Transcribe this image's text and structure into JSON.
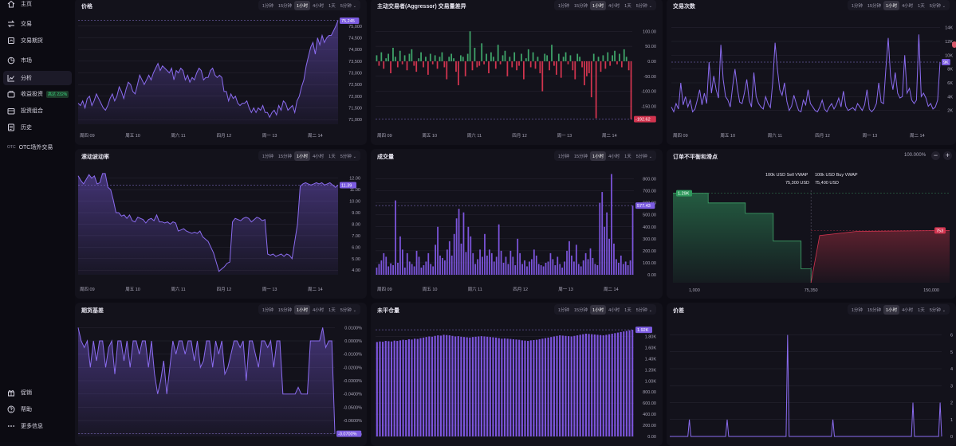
{
  "sidebar": {
    "items": [
      {
        "label": "主页",
        "icon": "home-icon",
        "badge": "",
        "tag": ""
      },
      {
        "label": "交易",
        "icon": "trade-icon",
        "badge": "",
        "tag": ""
      },
      {
        "label": "交易期货",
        "icon": "futures-icon",
        "badge": "",
        "tag": ""
      },
      {
        "label": "市场",
        "icon": "market-icon",
        "badge": "",
        "tag": ""
      },
      {
        "label": "分析",
        "icon": "analytics-icon",
        "badge": "",
        "tag": ""
      },
      {
        "label": "收益投资",
        "icon": "earn-icon",
        "badge": "高达 232%",
        "tag": ""
      },
      {
        "label": "投资组合",
        "icon": "portfolio-icon",
        "badge": "",
        "tag": ""
      },
      {
        "label": "历史",
        "icon": "history-icon",
        "badge": "",
        "tag": ""
      },
      {
        "label": "OTC场外交易",
        "icon": "otc-icon",
        "badge": "",
        "tag": "OTC"
      }
    ],
    "bottom_items": [
      {
        "label": "促销",
        "icon": "gift-icon"
      },
      {
        "label": "帮助",
        "icon": "help-icon"
      },
      {
        "label": "更多信息",
        "icon": "more-icon"
      }
    ]
  },
  "timeframes": [
    "1分钟",
    "15分钟",
    "1小时",
    "4小时",
    "1天",
    "5分钟"
  ],
  "x_ticks": [
    "周四 09",
    "周五 10",
    "周六 11",
    "四月 12",
    "周一 13",
    "周二 14"
  ],
  "colors": {
    "accent": "#8b5cf6",
    "up": "#3fa56a",
    "down": "#d2344f",
    "tag": "#7c5ce0"
  },
  "panels": {
    "price": {
      "title": "价格",
      "active": "1小时"
    },
    "aggressor": {
      "title": "主动交易者(Aggressor) 交易量差异",
      "active": "1小时"
    },
    "trades": {
      "title": "交易次数",
      "active": "1小时"
    },
    "volatility": {
      "title": "滚动波动率",
      "active": "1小时"
    },
    "volume": {
      "title": "成交量",
      "active": "1小时"
    },
    "orderbook": {
      "title": "订单不平衡和滑点",
      "zoom": "100.000%",
      "minus": "−",
      "plus": "+",
      "sell_vwap_label": "100k USD Sell VWAP",
      "sell_vwap_value": "75,300  USD",
      "buy_vwap_label": "100k USD Buy VWAP",
      "buy_vwap_value": "75,400 USD",
      "bid_tag": "1.29K",
      "ask_tag": "753",
      "x_ticks": [
        "1,000",
        "75,350",
        "150,000"
      ]
    },
    "basis": {
      "title": "期货基差",
      "active": "1小时"
    },
    "oi": {
      "title": "未平仓量",
      "active": "1小时"
    },
    "spread": {
      "title": "价差",
      "active": "1小时"
    }
  },
  "chart_data": [
    {
      "id": "price",
      "type": "area",
      "title": "价格",
      "yticks": [
        "75,000",
        "74,500",
        "74,000",
        "73,500",
        "73,000",
        "72,500",
        "72,000",
        "71,500",
        "71,000"
      ],
      "ylim": [
        70800,
        75300
      ],
      "last_label": "75,245",
      "values": [
        71700,
        71600,
        71800,
        71500,
        71900,
        72000,
        71600,
        71800,
        72100,
        71900,
        71700,
        71500,
        71400,
        71600,
        71900,
        72100,
        71800,
        72000,
        72400,
        72200,
        71900,
        72300,
        72600,
        72500,
        72200,
        72100,
        72500,
        72900,
        72700,
        72500,
        72700,
        72900,
        72700,
        73000,
        73200,
        73400,
        73100,
        73300,
        73200,
        73100,
        73000,
        73200,
        72700,
        73100,
        73000,
        73200,
        73100,
        72700,
        72900,
        72600,
        72800,
        72700,
        73000,
        73200,
        73100,
        72700,
        72800,
        72800,
        73100,
        73200,
        72900,
        72800,
        72900,
        72800,
        72200,
        72200,
        71800,
        72100,
        71900,
        72000,
        71700,
        71600,
        71700,
        71700,
        71800,
        71500,
        71300,
        71500,
        71300,
        71500,
        71400,
        71600,
        71300,
        71300,
        71100,
        71300,
        71400,
        71200,
        71600,
        71400,
        71800,
        71700,
        71400,
        71500,
        71600,
        71300,
        71800,
        72000,
        72400,
        72700,
        73300,
        73700,
        74100,
        74300,
        73800,
        74500,
        74200,
        74600,
        74300,
        74500,
        74600,
        74600,
        74800,
        75000,
        75245
      ]
    },
    {
      "id": "aggressor",
      "type": "bar",
      "title": "主动交易者(Aggressor) 交易量差异",
      "yticks": [
        "100.00",
        "50.00",
        "0.00",
        "-50.00",
        "-100.00",
        "-150.00"
      ],
      "ylim": [
        -210,
        130
      ],
      "last_label": "-192.62",
      "values": [
        20,
        -15,
        30,
        -25,
        10,
        25,
        -40,
        45,
        15,
        -20,
        35,
        -10,
        20,
        -30,
        25,
        40,
        -15,
        -35,
        10,
        30,
        -20,
        15,
        -45,
        25,
        -10,
        20,
        -25,
        15,
        30,
        -20,
        -60,
        15,
        25,
        10,
        -35,
        -80,
        20,
        15,
        -50,
        25,
        100,
        -30,
        45,
        -20,
        -15,
        60,
        -10,
        25,
        -40,
        30,
        15,
        -25,
        55,
        -10,
        20,
        35,
        -50,
        15,
        -20,
        30,
        -30,
        -15,
        25,
        -60,
        10,
        40,
        -20,
        30,
        -25,
        15,
        -40,
        -100,
        25,
        20,
        -30,
        55,
        -15,
        -45,
        25,
        -55,
        15,
        30,
        -10,
        20,
        -30,
        -60,
        25,
        15,
        -20,
        -80,
        -50,
        -40,
        -120,
        25,
        -190,
        15,
        -35,
        20,
        -25,
        30,
        -15,
        20,
        35,
        -10,
        25,
        -20,
        40,
        15,
        -30,
        -193
      ]
    },
    {
      "id": "trades",
      "type": "line",
      "title": "交易次数",
      "yticks": [
        "14K",
        "12K",
        "10K",
        "8K",
        "6K",
        "4K",
        "2K"
      ],
      "ylim": [
        0,
        15000
      ],
      "last_label": "9K",
      "values": [
        2500,
        1800,
        3000,
        2200,
        6000,
        2800,
        4000,
        2500,
        3500,
        1800,
        2200,
        3500,
        5000,
        2800,
        4500,
        3000,
        9000,
        4500,
        7000,
        5000,
        3800,
        11500,
        6500,
        4000,
        3500,
        2500,
        5500,
        8000,
        5200,
        3200,
        3000,
        4500,
        6500,
        3500,
        2500,
        7500,
        4000,
        3000,
        2500,
        2200,
        4000,
        3000,
        2400,
        6000,
        11800,
        8000,
        5000,
        4200,
        6000,
        3300,
        2000,
        2600,
        4200,
        3000,
        2000,
        1800,
        3500,
        2800,
        5000,
        3000,
        2500,
        2000,
        1800,
        2500,
        3500,
        2200,
        1800,
        2500,
        3000,
        2200,
        2800,
        3800,
        2500,
        4800,
        2600,
        2000,
        2200,
        2400,
        2000,
        3000,
        2500,
        2000,
        2800,
        5000,
        2200,
        1800,
        2200,
        3000,
        6000,
        3200,
        3000,
        8000,
        12500,
        7000,
        5000,
        7500,
        4500,
        3800,
        4000,
        10000,
        4500,
        5200,
        3500,
        3000,
        3500,
        13000,
        4000,
        4500,
        3800,
        2600,
        3000,
        2200,
        2500,
        3500,
        9000
      ]
    },
    {
      "id": "volatility",
      "type": "line",
      "title": "滚动波动率",
      "yticks": [
        "12.00",
        "11.00",
        "10.00",
        "9.00",
        "8.00",
        "7.00",
        "6.00",
        "5.00",
        "4.00"
      ],
      "ylim": [
        3.6,
        12.6
      ],
      "last_label": "11.39",
      "values": [
        12.2,
        11.8,
        11.5,
        11.9,
        12.3,
        12.0,
        12.2,
        11.5,
        11.6,
        12.4,
        12.4,
        11.2,
        11.0,
        10.1,
        9.0,
        9.0,
        8.7,
        8.8,
        8.5,
        8.8,
        8.3,
        8.2,
        8.6,
        8.5,
        8.4,
        8.1,
        8.4,
        8.5,
        8.3,
        8.8,
        8.2,
        8.2,
        8.1,
        8.2,
        8.0,
        8.2,
        8.1,
        7.4,
        7.5,
        7.6,
        7.4,
        7.3,
        7.2,
        7.3,
        7.2,
        7.4,
        6.9,
        6.7,
        6.5,
        6.0,
        5.5,
        4.7,
        3.9,
        4.1,
        4.3,
        4.6,
        4.7,
        8.2,
        8.5,
        8.4,
        8.3,
        8.5,
        8.6,
        8.5,
        8.2,
        8.4,
        8.6,
        8.5,
        8.3,
        8.4,
        5.4,
        5.3,
        5.4,
        5.2,
        5.3,
        5.4,
        5.2,
        5.4,
        5.3,
        5.0,
        6.5,
        8.0,
        11.3,
        11.5,
        11.6,
        11.5,
        11.4,
        11.5,
        11.6,
        11.5,
        11.6,
        11.4,
        11.5,
        11.6,
        11.4,
        11.2,
        11.39
      ]
    },
    {
      "id": "volume",
      "type": "bar",
      "title": "成交量",
      "yticks": [
        "800.00",
        "700.00",
        "600.00",
        "500.00",
        "400.00",
        "300.00",
        "200.00",
        "100.00",
        "0.00"
      ],
      "ylim": [
        0,
        850
      ],
      "last_label": "577.43",
      "values": [
        60,
        90,
        120,
        180,
        150,
        70,
        95,
        80,
        620,
        100,
        320,
        210,
        60,
        180,
        110,
        90,
        70,
        200,
        150,
        60,
        80,
        110,
        180,
        90,
        70,
        250,
        400,
        160,
        140,
        120,
        210,
        280,
        160,
        340,
        470,
        550,
        260,
        520,
        190,
        400,
        320,
        180,
        90,
        130,
        210,
        150,
        340,
        160,
        210,
        180,
        110,
        150,
        420,
        200,
        100,
        150,
        90,
        200,
        150,
        80,
        300,
        180,
        90,
        120,
        70,
        110,
        130,
        210,
        160,
        90,
        80,
        70,
        100,
        110,
        180,
        130,
        80,
        150,
        90,
        60,
        110,
        200,
        280,
        160,
        110,
        250,
        90,
        70,
        120,
        180,
        130,
        220,
        140,
        90,
        80,
        600,
        690,
        400,
        520,
        300,
        840,
        260,
        130,
        100,
        160,
        90,
        110,
        80,
        120,
        577
      ]
    },
    {
      "id": "orderbook",
      "type": "area",
      "title": "订单不平衡和滑点",
      "bids": {
        "x": [
          1000,
          20000,
          40000,
          55000,
          70000,
          75350
        ],
        "y": [
          1290,
          1150,
          1000,
          600,
          200,
          0
        ]
      },
      "asks": {
        "x": [
          75350,
          80000,
          100000,
          150000
        ],
        "y": [
          0,
          680,
          740,
          753
        ]
      },
      "x_ticks": [
        "1,000",
        "75,350",
        "150,000"
      ]
    },
    {
      "id": "basis",
      "type": "line",
      "title": "期货基差",
      "yticks": [
        "0.0100%",
        "0.0000%",
        "-0.0100%",
        "-0.0200%",
        "-0.0300%",
        "-0.0400%",
        "-0.0500%",
        "-0.0600%",
        "-0.0700%"
      ],
      "ylim": [
        -0.072,
        0.012
      ],
      "last_label": "-0.0700%",
      "values": [
        0.01,
        0.0,
        -0.005,
        0.0,
        -0.02,
        0.0,
        -0.015,
        0.0,
        0.0,
        -0.02,
        -0.005,
        0.0,
        -0.025,
        0.0,
        0.0,
        -0.015,
        0.0,
        -0.02,
        0.0,
        0.0,
        -0.01,
        0.0,
        0.0,
        -0.02,
        0.0,
        -0.025,
        -0.04,
        -0.03,
        -0.015,
        -0.04,
        -0.02,
        0.0,
        -0.01,
        0.0,
        0.0,
        -0.01,
        0.0,
        0.0,
        -0.015,
        0.0,
        -0.02,
        -0.015,
        0.0,
        0.0,
        -0.02,
        0.0,
        -0.01,
        0.0,
        -0.025,
        -0.02,
        -0.01,
        0.0,
        0.0,
        -0.005,
        0.0,
        -0.03,
        0.0,
        0.0,
        -0.01,
        -0.02,
        0.0,
        0.0,
        -0.005,
        0.0,
        -0.02,
        0.0,
        0.0,
        -0.04,
        -0.04,
        -0.04,
        -0.04,
        -0.04,
        -0.035,
        -0.04,
        -0.04,
        -0.04,
        0.0,
        0.0,
        0.0,
        0.0,
        0.01,
        -0.005,
        0.0,
        0.0,
        -0.07
      ]
    },
    {
      "id": "oi",
      "type": "bar",
      "title": "未平仓量",
      "yticks": [
        "1.80K",
        "1.60K",
        "1.40K",
        "1.20K",
        "1.00K",
        "800.00",
        "600.00",
        "400.00",
        "200.00",
        "0.00"
      ],
      "ylim": [
        0,
        1950
      ],
      "last_label": "1.92K",
      "values": [
        1700,
        1710,
        1705,
        1720,
        1715,
        1710,
        1725,
        1720,
        1730,
        1740,
        1735,
        1750,
        1745,
        1760,
        1755,
        1770,
        1780,
        1790,
        1800,
        1795,
        1810,
        1820,
        1815,
        1830,
        1825,
        1820,
        1810,
        1800,
        1805,
        1795,
        1790,
        1785,
        1780,
        1790,
        1795,
        1800,
        1805,
        1800,
        1795,
        1790,
        1785,
        1780,
        1770,
        1760,
        1765,
        1760,
        1755,
        1750,
        1745,
        1740,
        1730,
        1725,
        1720,
        1730,
        1735,
        1740,
        1750,
        1760,
        1770,
        1780,
        1790,
        1800,
        1810,
        1820,
        1815,
        1810,
        1805,
        1800,
        1810,
        1820,
        1830,
        1840,
        1850,
        1845,
        1840,
        1835,
        1830,
        1825,
        1820,
        1830,
        1840,
        1850,
        1860,
        1870,
        1880,
        1890,
        1900,
        1910,
        1920
      ]
    },
    {
      "id": "spread",
      "type": "line",
      "title": "价差",
      "yticks": [
        "6",
        "5",
        "4",
        "3",
        "2",
        "1",
        "0"
      ],
      "ylim": [
        0,
        6.4
      ],
      "last_label": "",
      "values": [
        0,
        0,
        0,
        0,
        0,
        0,
        0,
        0,
        0,
        0,
        0,
        0,
        0,
        1,
        0,
        0,
        0,
        0,
        0,
        0,
        0,
        0,
        0,
        0,
        0,
        0,
        0,
        0,
        0,
        0,
        0,
        0,
        0,
        0,
        0,
        0,
        0,
        0,
        1,
        0,
        0,
        0,
        0,
        0,
        0,
        0,
        0,
        0,
        0,
        0,
        0,
        0,
        0,
        0,
        0,
        0,
        0,
        0,
        0,
        0,
        0,
        0,
        0,
        0,
        0,
        0,
        0,
        0,
        0,
        0,
        0,
        0,
        0,
        0,
        0,
        0,
        0,
        0,
        6,
        0,
        0,
        0,
        0,
        0,
        0,
        0,
        0,
        0,
        0,
        0,
        0,
        0,
        0,
        0,
        0,
        0,
        0,
        0,
        0,
        0,
        0,
        0,
        0,
        0,
        0,
        0,
        0,
        0,
        1,
        0,
        0,
        0,
        0,
        0,
        0,
        0,
        0,
        0,
        0,
        0,
        0,
        0,
        0,
        0,
        0,
        0,
        0,
        0,
        0,
        0,
        0,
        0,
        0,
        0,
        0,
        0,
        0,
        0,
        0,
        0,
        0,
        0,
        0,
        0,
        0,
        0,
        0,
        0,
        0,
        0,
        0,
        0,
        0,
        0,
        0,
        0,
        0,
        0,
        0,
        0,
        0,
        2,
        0,
        0,
        0,
        0,
        0,
        0,
        0,
        0,
        0,
        0,
        0,
        0,
        0,
        0,
        0,
        0,
        0,
        2,
        0
      ]
    }
  ]
}
